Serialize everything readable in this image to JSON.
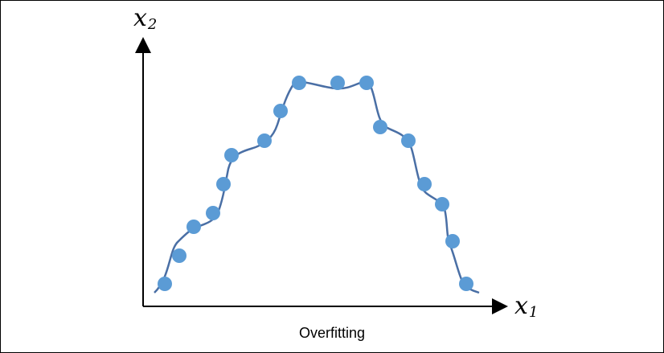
{
  "diagram": {
    "caption": "Overfitting",
    "x_axis": {
      "symbol": "x",
      "subscript": "1"
    },
    "y_axis": {
      "symbol": "x",
      "subscript": "2"
    },
    "colors": {
      "points": "#5b9bd5",
      "curve": "#4a6fa5",
      "axes": "#000000"
    },
    "chart_data": {
      "type": "scatter",
      "xlabel": "x1",
      "ylabel": "x2",
      "series": [
        {
          "points": [
            [
              205,
              353
            ],
            [
              223,
              318
            ],
            [
              241,
              282
            ],
            [
              265,
              265
            ],
            [
              278,
              229
            ],
            [
              288,
              193
            ],
            [
              329,
              175
            ],
            [
              349,
              138
            ],
            [
              372,
              103
            ],
            [
              420,
              103
            ],
            [
              456,
              103
            ],
            [
              473,
              158
            ],
            [
              508,
              175
            ],
            [
              528,
              229
            ],
            [
              550,
              254
            ],
            [
              563,
              300
            ],
            [
              580,
              353
            ]
          ]
        }
      ]
    }
  }
}
